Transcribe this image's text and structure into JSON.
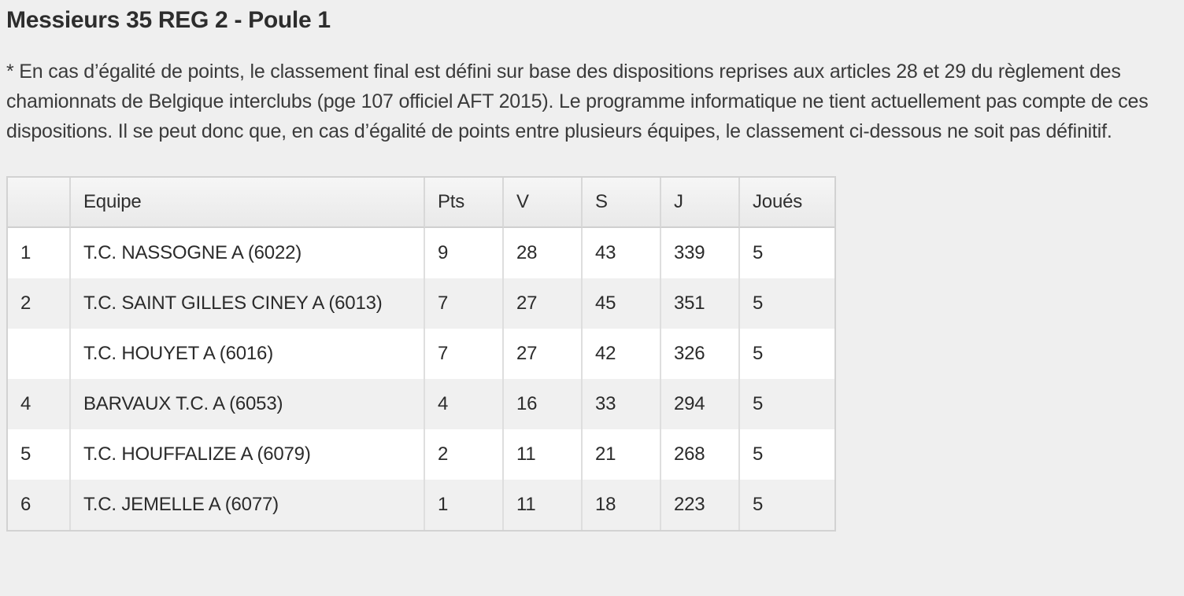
{
  "page": {
    "title": "Messieurs 35 REG 2 - Poule 1",
    "disclaimer": "* En cas d’égalité de points, le classement final est défini sur base des dispositions reprises aux articles 28 et 29 du règlement des chamionnats de Belgique interclubs (pge 107 officiel AFT 2015). Le programme informatique ne tient actuellement pas compte de ces dispositions. Il se peut donc que, en cas d’égalité de points entre plusieurs équipes, le classement ci-dessous ne soit pas définitif."
  },
  "colors": {
    "page_background": "#efefef",
    "row_stripe": "#f0f0f0",
    "table_border": "#d2d2d2",
    "header_gradient_top": "#f6f6f6",
    "header_gradient_bottom": "#e9e9e9",
    "text": "#2f2f2f"
  },
  "table": {
    "columns": {
      "rank": "",
      "team": "Equipe",
      "pts": "Pts",
      "v": "V",
      "s": "S",
      "j": "J",
      "joues": "Joués"
    },
    "rows": [
      {
        "rank": "1",
        "team": "T.C. NASSOGNE A (6022)",
        "pts": "9",
        "v": "28",
        "s": "43",
        "j": "339",
        "joues": "5"
      },
      {
        "rank": "2",
        "team": "T.C. SAINT GILLES CINEY A (6013)",
        "pts": "7",
        "v": "27",
        "s": "45",
        "j": "351",
        "joues": "5"
      },
      {
        "rank": "",
        "team": "T.C. HOUYET A (6016)",
        "pts": "7",
        "v": "27",
        "s": "42",
        "j": "326",
        "joues": "5"
      },
      {
        "rank": "4",
        "team": "BARVAUX T.C. A (6053)",
        "pts": "4",
        "v": "16",
        "s": "33",
        "j": "294",
        "joues": "5"
      },
      {
        "rank": "5",
        "team": "T.C. HOUFFALIZE A (6079)",
        "pts": "2",
        "v": "11",
        "s": "21",
        "j": "268",
        "joues": "5"
      },
      {
        "rank": "6",
        "team": "T.C. JEMELLE A (6077)",
        "pts": "1",
        "v": "11",
        "s": "18",
        "j": "223",
        "joues": "5"
      }
    ]
  }
}
